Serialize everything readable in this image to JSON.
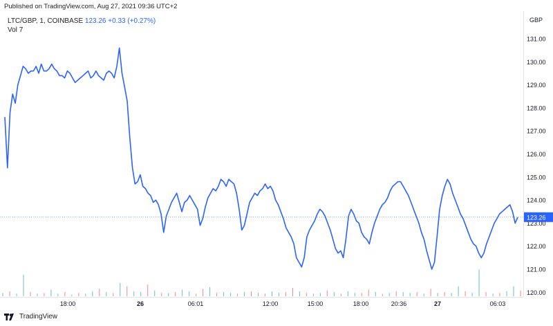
{
  "published": "Published on TradingView.com, Aug 27, 2021 09:36 UTC+2",
  "legend": {
    "symbol": "LTC/GBP, 1, COINBASE",
    "last": "123.26",
    "change": "+0.33 (+0.27%)",
    "vol_label": "Vol",
    "vol_value": "7"
  },
  "currency": "GBP",
  "last_price_label": "123.26",
  "footer": {
    "brand": "TradingView",
    "logo_icon": "tradingview-logo-icon"
  },
  "colors": {
    "line": "#2962ff",
    "vol_up": "#26a69a",
    "vol_down": "#ef5350",
    "axis_text": "#131722",
    "grid": "#f0f3fa"
  },
  "chart_data": {
    "type": "line",
    "x_tick_labels": [
      "18:00",
      "26",
      "06:01",
      "12:00",
      "15:00",
      "18:00",
      "20:36",
      "27",
      "06:03"
    ],
    "y_tick_labels": [
      "120.00",
      "121.00",
      "122.00",
      "123.00",
      "124.00",
      "125.00",
      "126.00",
      "127.00",
      "128.00",
      "129.00",
      "130.00",
      "131.00"
    ],
    "ylim": [
      119.8,
      132.2
    ],
    "last_value": 123.26,
    "series": [
      {
        "values": [
          127.6,
          125.4,
          127.8,
          128.6,
          128.2,
          129.0,
          129.4,
          129.8,
          129.7,
          129.5,
          129.6,
          129.6,
          129.8,
          129.5,
          129.9,
          129.6,
          129.6,
          129.7,
          129.9,
          129.7,
          129.6,
          129.4,
          129.4,
          129.3,
          129.6,
          129.5,
          129.3,
          129.1,
          129.2,
          129.3,
          129.4,
          129.5,
          129.6,
          129.3,
          129.4,
          129.6,
          129.4,
          129.3,
          129.2,
          129.5,
          129.6,
          129.5,
          129.3,
          129.8,
          130.6,
          129.5,
          128.9,
          128.3,
          126.7,
          125.4,
          124.7,
          124.8,
          125.1,
          124.6,
          124.5,
          124.3,
          124.2,
          123.9,
          124.0,
          123.8,
          123.4,
          122.6,
          123.3,
          123.6,
          123.9,
          124.1,
          124.3,
          123.9,
          123.5,
          123.9,
          124.0,
          124.2,
          124.0,
          123.8,
          123.6,
          122.9,
          123.2,
          123.7,
          124.1,
          124.3,
          124.5,
          124.4,
          124.6,
          124.9,
          124.8,
          124.6,
          124.9,
          124.8,
          124.7,
          124.3,
          123.6,
          122.7,
          122.9,
          123.4,
          123.9,
          124.1,
          124.3,
          124.2,
          124.4,
          124.5,
          124.7,
          124.5,
          124.6,
          124.4,
          124.0,
          123.8,
          123.5,
          123.2,
          122.8,
          122.6,
          122.4,
          122.1,
          121.5,
          121.3,
          121.1,
          121.5,
          122.4,
          122.7,
          122.9,
          123.1,
          123.4,
          123.6,
          123.5,
          123.3,
          123.0,
          122.7,
          122.3,
          121.9,
          121.7,
          121.8,
          121.5,
          122.3,
          123.3,
          123.6,
          123.4,
          123.1,
          123.0,
          122.6,
          122.4,
          122.3,
          122.1,
          122.6,
          123.0,
          123.3,
          123.6,
          123.8,
          123.9,
          124.1,
          124.4,
          124.6,
          124.7,
          124.8,
          124.8,
          124.6,
          124.4,
          124.2,
          123.9,
          123.6,
          123.3,
          123.0,
          122.6,
          122.3,
          121.8,
          121.4,
          121.0,
          121.3,
          122.4,
          123.6,
          124.2,
          124.6,
          124.9,
          124.7,
          124.3,
          124.0,
          123.7,
          123.4,
          123.2,
          122.9,
          122.6,
          122.3,
          122.1,
          122.0,
          121.7,
          121.5,
          121.7,
          122.1,
          122.4,
          122.7,
          123.0,
          123.2,
          123.4,
          123.5,
          123.6,
          123.7,
          123.8,
          123.5,
          123.0,
          123.26
        ]
      }
    ],
    "volume": {
      "values": [
        0.4,
        0.6,
        0.3,
        2.6,
        0.5,
        0.3,
        0.4,
        0.8,
        0.3,
        0.5,
        0.2,
        0.4,
        0.3,
        0.6,
        0.9,
        0.5,
        0.4,
        1.6,
        1.2,
        0.6,
        0.5,
        1.4,
        0.7,
        0.4,
        0.4,
        0.5,
        0.8,
        0.6,
        0.3,
        0.9,
        1.1,
        0.4,
        0.5,
        0.4,
        0.3,
        0.5,
        0.6,
        0.4,
        0.3,
        0.6,
        0.4,
        0.5,
        1.0,
        0.6,
        0.4,
        0.3,
        0.4,
        0.7,
        0.5,
        0.3,
        0.6,
        0.4,
        0.4,
        0.8,
        0.5,
        0.3,
        0.4,
        0.6,
        0.5,
        0.4,
        0.5,
        0.3,
        0.9,
        0.4,
        0.5,
        0.4,
        1.2,
        0.6,
        0.4,
        3.2,
        0.5,
        0.3,
        0.4,
        0.6,
        1.2,
        0.7
      ],
      "up": [
        1,
        0,
        1,
        1,
        0,
        1,
        0,
        1,
        1,
        0,
        1,
        0,
        1,
        1,
        0,
        1,
        0,
        1,
        0,
        1,
        1,
        0,
        1,
        0,
        1,
        0,
        1,
        1,
        0,
        0,
        1,
        0,
        1,
        1,
        0,
        1,
        0,
        1,
        0,
        1,
        1,
        0,
        0,
        1,
        0,
        1,
        1,
        0,
        1,
        0,
        1,
        1,
        0,
        0,
        1,
        0,
        1,
        0,
        1,
        1,
        0,
        1,
        0,
        1,
        0,
        1,
        1,
        0,
        1,
        1,
        0,
        1,
        0,
        1,
        1,
        0
      ]
    }
  }
}
